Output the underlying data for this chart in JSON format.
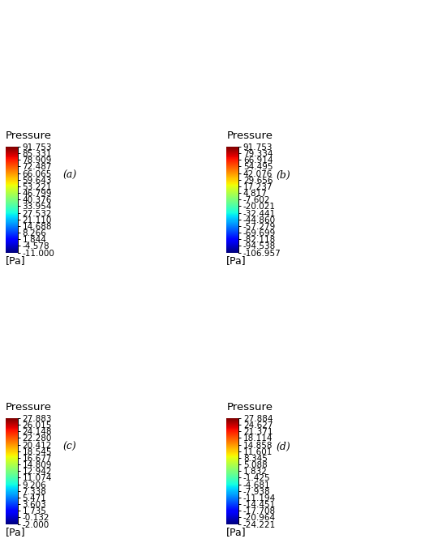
{
  "panels": [
    {
      "label": "(a)",
      "colorbar_title": "Pressure",
      "tick_values": [
        91.753,
        85.331,
        78.909,
        72.487,
        66.065,
        59.643,
        53.221,
        46.799,
        40.376,
        33.954,
        27.532,
        21.11,
        14.688,
        8.266,
        1.844,
        -4.578,
        -11.0
      ],
      "tick_labels": [
        "91.753",
        "85.331",
        "78.909",
        "72.487",
        "66.065",
        "59.643",
        "53.221",
        "46.799",
        "40.376",
        "33.954",
        "27.532",
        "21.110",
        "14.688",
        "8.266",
        "1.844",
        "-4.578",
        "-11.000"
      ],
      "vmin": -11.0,
      "vmax": 91.753,
      "unit": "[Pa]"
    },
    {
      "label": "(b)",
      "colorbar_title": "Pressure",
      "tick_values": [
        91.753,
        79.334,
        66.914,
        54.495,
        42.076,
        29.656,
        17.237,
        4.817,
        -7.602,
        -20.021,
        -32.441,
        -44.86,
        -57.279,
        -69.699,
        -82.118,
        -94.538,
        -106.957
      ],
      "tick_labels": [
        "91.753",
        "79.334",
        "66.914",
        "54.495",
        "42.076",
        "29.656",
        "17.237",
        "4.817",
        "-7.602",
        "-20.021",
        "-32.441",
        "-44.860",
        "-57.279",
        "-69.699",
        "-82.118",
        "-94.538",
        "-106.957"
      ],
      "vmin": -106.957,
      "vmax": 91.753,
      "unit": "[Pa]"
    },
    {
      "label": "(c)",
      "colorbar_title": "Pressure",
      "tick_values": [
        27.883,
        26.015,
        24.148,
        22.28,
        20.412,
        18.545,
        16.677,
        14.809,
        12.942,
        11.074,
        9.206,
        7.338,
        5.471,
        3.603,
        1.735,
        -0.132,
        -2.0
      ],
      "tick_labels": [
        "27.883",
        "26.015",
        "24.148",
        "22.280",
        "20.412",
        "18.545",
        "16.677",
        "14.809",
        "12.942",
        "11.074",
        "9.206",
        "7.338",
        "5.471",
        "3.603",
        "1.735",
        "-0.132",
        "-2.000"
      ],
      "vmin": -2.0,
      "vmax": 27.883,
      "unit": "[Pa]"
    },
    {
      "label": "(d)",
      "colorbar_title": "Pressure",
      "tick_values": [
        27.884,
        24.627,
        21.371,
        18.114,
        14.858,
        11.601,
        8.345,
        5.088,
        1.832,
        -1.425,
        -4.681,
        -7.938,
        -11.194,
        -14.451,
        -17.708,
        -20.964,
        -24.221
      ],
      "tick_labels": [
        "27.884",
        "24.627",
        "21.371",
        "18.114",
        "14.858",
        "11.601",
        "8.345",
        "5.088",
        "1.832",
        "-1.425",
        "-4.681",
        "-7.938",
        "-11.194",
        "-14.451",
        "-17.708",
        "-20.964",
        "-24.221"
      ],
      "vmin": -24.221,
      "vmax": 27.884,
      "unit": "[Pa]"
    }
  ],
  "colormap": "jet",
  "background_color": "white",
  "title_fontsize": 9.5,
  "tick_fontsize": 7.5,
  "label_fontsize": 9,
  "unit_fontsize": 9,
  "fig_width": 5.45,
  "fig_height": 6.7,
  "dpi": 100
}
